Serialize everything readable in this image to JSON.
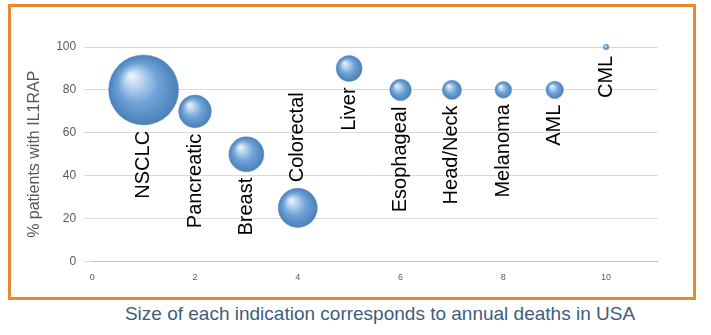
{
  "chart_data": {
    "type": "bubble",
    "y_label": "% patients with IL1RAP",
    "caption": "Size of each indication corresponds to annual deaths in USA",
    "annotations": [
      "NSCLC",
      "Pancreatic",
      "Breast",
      "Colorectal",
      "Liver",
      "Esophageal",
      "Head/Neck",
      "Melanoma",
      "AML",
      "CML"
    ],
    "x": [
      1,
      2,
      3,
      4,
      5,
      6,
      7,
      8,
      9,
      10
    ],
    "values": [
      80,
      70,
      50,
      25,
      90,
      80,
      80,
      80,
      80,
      100
    ],
    "sizes": [
      160000,
      35000,
      40000,
      50000,
      22000,
      15000,
      12000,
      9000,
      10000,
      1000
    ],
    "color": "#6fa3d8",
    "xlim": [
      0,
      11
    ],
    "xticks": [
      0,
      2,
      4,
      6,
      8,
      10
    ],
    "ylim": [
      0,
      100
    ],
    "yticks": [
      0,
      20,
      40,
      60,
      80,
      100
    ],
    "grid": true
  }
}
